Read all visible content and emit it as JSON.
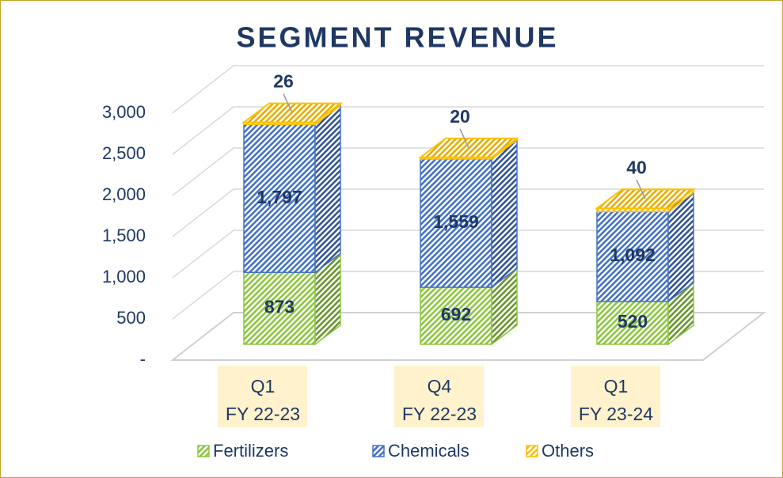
{
  "chart_data": {
    "type": "bar3d_stacked",
    "title": "SEGMENT REVENUE",
    "categories": [
      [
        "Q1",
        "FY 22-23"
      ],
      [
        "Q4",
        "FY 22-23"
      ],
      [
        "Q1",
        "FY 23-24"
      ]
    ],
    "series": [
      {
        "name": "Fertilizers",
        "color": "#8cc63f",
        "values": [
          873,
          692,
          520
        ],
        "value_labels": [
          "873",
          "692",
          "520"
        ]
      },
      {
        "name": "Chemicals",
        "color": "#4472c4",
        "values": [
          1797,
          1559,
          1092
        ],
        "value_labels": [
          "1,797",
          "1,559",
          "1,092"
        ]
      },
      {
        "name": "Others",
        "color": "#ffc000",
        "values": [
          26,
          20,
          40
        ],
        "value_labels": [
          "26",
          "20",
          "40"
        ]
      }
    ],
    "ylim": [
      0,
      3000
    ],
    "yticks": [
      {
        "value": 0,
        "label": "-"
      },
      500,
      {
        "value": 1000,
        "label": "1,000"
      },
      {
        "value": 1500,
        "label": "1,500"
      },
      {
        "value": 2000,
        "label": "2,000"
      },
      {
        "value": 2500,
        "label": "2,500"
      },
      {
        "value": 3000,
        "label": "3,000"
      }
    ],
    "grid": true,
    "legend": "bottom"
  }
}
